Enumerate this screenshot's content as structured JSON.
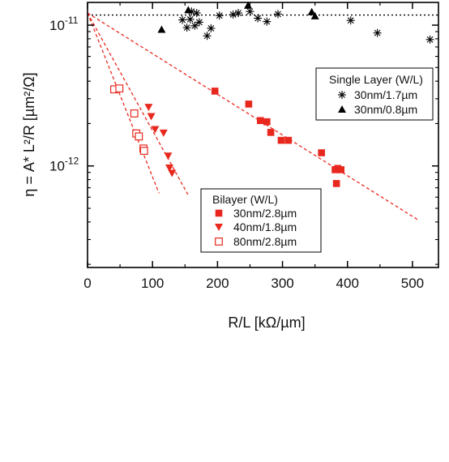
{
  "chart_data": {
    "type": "scatter",
    "xlabel": "R/L [kΩ/µm]",
    "ylabel": "η = A* L²/R [µm²/Ω]",
    "xlim": [
      0,
      540
    ],
    "ylim": [
      1.9e-13,
      1.45e-11
    ],
    "yscale": "log",
    "x_ticks": [
      "0",
      "100",
      "200",
      "300",
      "400",
      "500"
    ],
    "y_ticks": [
      {
        "base": "10",
        "exp": "-11",
        "value": 1e-11
      },
      {
        "base": "10",
        "exp": "-12",
        "value": 1e-12
      }
    ],
    "legends": [
      {
        "title": "Single Layer (W/L)",
        "placement": "upper-right",
        "entries": [
          "30nm/1.7µm",
          "30nm/0.8µm"
        ]
      },
      {
        "title": "Bilayer (W/L)",
        "placement": "lower-center",
        "entries": [
          "30nm/2.8µm",
          "40nm/1.8µm",
          "80nm/2.8µm"
        ]
      }
    ],
    "series": [
      {
        "name": "30nm/1.7µm",
        "group": "Single Layer",
        "marker": "asterisk",
        "color": "#000000",
        "points": [
          [
            146,
            1.09e-11
          ],
          [
            153,
            9.6e-12
          ],
          [
            158,
            1.1e-11
          ],
          [
            160,
            1.25e-11
          ],
          [
            165,
            9.9e-12
          ],
          [
            168,
            1.22e-11
          ],
          [
            172,
            1.05e-11
          ],
          [
            184,
            8.4e-12
          ],
          [
            190,
            9.5e-12
          ],
          [
            203,
            1.17e-11
          ],
          [
            224,
            1.19e-11
          ],
          [
            232,
            1.22e-11
          ],
          [
            250,
            1.25e-11
          ],
          [
            262,
            1.12e-11
          ],
          [
            276,
            1.06e-11
          ],
          [
            293,
            1.2e-11
          ],
          [
            405,
            1.08e-11
          ],
          [
            446,
            8.8e-12
          ],
          [
            527,
            7.9e-12
          ]
        ]
      },
      {
        "name": "30nm/0.8µm",
        "group": "Single Layer",
        "marker": "filled-triangle-up",
        "color": "#000000",
        "points": [
          [
            114,
            9.3e-12
          ],
          [
            155,
            1.28e-11
          ],
          [
            247,
            1.38e-11
          ],
          [
            345,
            1.24e-11
          ],
          [
            350,
            1.16e-11
          ]
        ]
      },
      {
        "name": "30nm/2.8µm",
        "group": "Bilayer",
        "marker": "filled-square",
        "color": "#e8281e",
        "points": [
          [
            196,
            3.4e-12
          ],
          [
            248,
            2.75e-12
          ],
          [
            266,
            2.1e-12
          ],
          [
            276,
            2.06e-12
          ],
          [
            282,
            1.73e-12
          ],
          [
            298,
            1.52e-12
          ],
          [
            309,
            1.52e-12
          ],
          [
            360,
            1.24e-12
          ],
          [
            381,
            9.4e-13
          ],
          [
            383,
            7.5e-13
          ],
          [
            385,
            9.6e-13
          ],
          [
            390,
            9.4e-13
          ]
        ]
      },
      {
        "name": "40nm/1.8µm",
        "group": "Bilayer",
        "marker": "filled-triangle-down",
        "color": "#e8281e",
        "points": [
          [
            94,
            2.62e-12
          ],
          [
            98,
            2.25e-12
          ],
          [
            104,
            1.82e-12
          ],
          [
            117,
            1.72e-12
          ],
          [
            124,
            1.18e-12
          ],
          [
            126,
            9.7e-13
          ],
          [
            130,
            8.9e-13
          ]
        ]
      },
      {
        "name": "80nm/2.8µm",
        "group": "Bilayer",
        "marker": "open-square",
        "color": "#e8281e",
        "points": [
          [
            41,
            3.5e-12
          ],
          [
            49,
            3.55e-12
          ],
          [
            72,
            2.36e-12
          ],
          [
            75,
            1.7e-12
          ],
          [
            79,
            1.62e-12
          ],
          [
            86,
            1.33e-12
          ],
          [
            87,
            1.28e-12
          ]
        ]
      }
    ],
    "fit_lines": [
      {
        "style": "dotted",
        "color": "#000000",
        "x": [
          0,
          540
        ],
        "y": [
          1.18e-11,
          1.18e-11
        ]
      },
      {
        "style": "dashed",
        "color": "#e8281e",
        "x": [
          0,
          510
        ],
        "y": [
          1.22e-11,
          4.1e-13
        ]
      },
      {
        "style": "dashed",
        "color": "#e8281e",
        "x": [
          0,
          155
        ],
        "y": [
          1.22e-11,
          6.2e-13
        ]
      },
      {
        "style": "dashed",
        "color": "#e8281e",
        "x": [
          0,
          110
        ],
        "y": [
          1.22e-11,
          6.4e-13
        ]
      }
    ]
  }
}
